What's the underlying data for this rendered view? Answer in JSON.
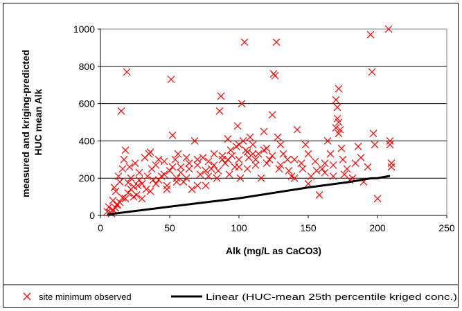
{
  "chart_data": {
    "type": "scatter",
    "xlabel": "Alk (mg/L as CaCO3)",
    "ylabel_line1": "measured and kriging-predicted",
    "ylabel_line2": "HUC mean Alk",
    "xlim": [
      0,
      250
    ],
    "ylim": [
      0,
      1000
    ],
    "xticks": [
      "0",
      "50",
      "100",
      "150",
      "200",
      "250"
    ],
    "yticks": [
      "0",
      "200",
      "400",
      "600",
      "800",
      "1000"
    ],
    "grid": "horizontal",
    "legend": "bottom",
    "colors": {
      "scatter": "#ff0000",
      "line": "#000000"
    },
    "series": [
      {
        "name": "site minimum observed",
        "marker": "x",
        "points": [
          [
            5,
            20
          ],
          [
            6,
            45
          ],
          [
            8,
            10
          ],
          [
            9,
            80
          ],
          [
            10,
            150
          ],
          [
            11,
            130
          ],
          [
            12,
            60
          ],
          [
            13,
            210
          ],
          [
            14,
            180
          ],
          [
            15,
            560
          ],
          [
            16,
            250
          ],
          [
            17,
            300
          ],
          [
            18,
            350
          ],
          [
            19,
            770
          ],
          [
            20,
            120
          ],
          [
            21,
            260
          ],
          [
            22,
            200
          ],
          [
            24,
            100
          ],
          [
            25,
            280
          ],
          [
            27,
            160
          ],
          [
            28,
            230
          ],
          [
            30,
            90
          ],
          [
            32,
            310
          ],
          [
            33,
            140
          ],
          [
            35,
            330
          ],
          [
            36,
            340
          ],
          [
            37,
            250
          ],
          [
            38,
            190
          ],
          [
            40,
            270
          ],
          [
            42,
            300
          ],
          [
            44,
            210
          ],
          [
            46,
            290
          ],
          [
            48,
            160
          ],
          [
            50,
            240
          ],
          [
            51,
            730
          ],
          [
            52,
            430
          ],
          [
            54,
            300
          ],
          [
            55,
            200
          ],
          [
            56,
            330
          ],
          [
            58,
            260
          ],
          [
            60,
            180
          ],
          [
            62,
            310
          ],
          [
            64,
            250
          ],
          [
            66,
            140
          ],
          [
            68,
            400
          ],
          [
            70,
            270
          ],
          [
            72,
            220
          ],
          [
            74,
            310
          ],
          [
            76,
            160
          ],
          [
            78,
            290
          ],
          [
            80,
            250
          ],
          [
            82,
            330
          ],
          [
            84,
            200
          ],
          [
            86,
            560
          ],
          [
            87,
            640
          ],
          [
            88,
            300
          ],
          [
            90,
            280
          ],
          [
            92,
            410
          ],
          [
            93,
            220
          ],
          [
            95,
            320
          ],
          [
            97,
            260
          ],
          [
            98,
            370
          ],
          [
            99,
            480
          ],
          [
            100,
            300
          ],
          [
            101,
            200
          ],
          [
            102,
            600
          ],
          [
            103,
            400
          ],
          [
            104,
            930
          ],
          [
            105,
            350
          ],
          [
            106,
            250
          ],
          [
            107,
            310
          ],
          [
            108,
            420
          ],
          [
            110,
            380
          ],
          [
            112,
            270
          ],
          [
            114,
            330
          ],
          [
            116,
            200
          ],
          [
            118,
            450
          ],
          [
            120,
            360
          ],
          [
            122,
            300
          ],
          [
            124,
            540
          ],
          [
            125,
            760
          ],
          [
            126,
            750
          ],
          [
            127,
            930
          ],
          [
            128,
            420
          ],
          [
            129,
            250
          ],
          [
            130,
            380
          ],
          [
            132,
            330
          ],
          [
            135,
            300
          ],
          [
            138,
            210
          ],
          [
            140,
            200
          ],
          [
            142,
            460
          ],
          [
            145,
            280
          ],
          [
            148,
            380
          ],
          [
            150,
            170
          ],
          [
            152,
            210
          ],
          [
            155,
            290
          ],
          [
            158,
            110
          ],
          [
            160,
            250
          ],
          [
            162,
            230
          ],
          [
            164,
            400
          ],
          [
            166,
            330
          ],
          [
            168,
            270
          ],
          [
            170,
            620
          ],
          [
            171,
            580
          ],
          [
            172,
            680
          ],
          [
            172,
            500
          ],
          [
            173,
            460
          ],
          [
            174,
            360
          ],
          [
            176,
            220
          ],
          [
            178,
            250
          ],
          [
            180,
            190
          ],
          [
            184,
            280
          ],
          [
            186,
            370
          ],
          [
            190,
            180
          ],
          [
            195,
            970
          ],
          [
            196,
            770
          ],
          [
            197,
            440
          ],
          [
            198,
            380
          ],
          [
            200,
            90
          ],
          [
            208,
            1000
          ],
          [
            209,
            400
          ],
          [
            209,
            380
          ],
          [
            210,
            260
          ],
          [
            210,
            280
          ],
          [
            170,
            470
          ],
          [
            171,
            520
          ],
          [
            172,
            440
          ],
          [
            120,
            280
          ],
          [
            110,
            330
          ],
          [
            100,
            260
          ],
          [
            92,
            300
          ],
          [
            85,
            240
          ],
          [
            78,
            210
          ],
          [
            70,
            160
          ],
          [
            62,
            200
          ],
          [
            55,
            180
          ],
          [
            48,
            140
          ],
          [
            42,
            190
          ],
          [
            36,
            130
          ],
          [
            30,
            170
          ],
          [
            26,
            110
          ],
          [
            22,
            140
          ],
          [
            18,
            90
          ],
          [
            14,
            70
          ],
          [
            11,
            40
          ],
          [
            7,
            15
          ],
          [
            9,
            30
          ],
          [
            12,
            55
          ],
          [
            16,
            95
          ],
          [
            20,
            175
          ],
          [
            24,
            155
          ],
          [
            28,
            190
          ],
          [
            34,
            210
          ],
          [
            40,
            170
          ],
          [
            46,
            220
          ],
          [
            52,
            260
          ],
          [
            58,
            230
          ],
          [
            64,
            280
          ],
          [
            70,
            300
          ],
          [
            76,
            240
          ],
          [
            82,
            270
          ],
          [
            88,
            320
          ],
          [
            94,
            350
          ],
          [
            100,
            380
          ],
          [
            106,
            340
          ],
          [
            112,
            300
          ],
          [
            118,
            350
          ],
          [
            124,
            320
          ],
          [
            130,
            270
          ],
          [
            136,
            240
          ],
          [
            140,
            300
          ],
          [
            146,
            250
          ],
          [
            150,
            330
          ],
          [
            156,
            240
          ],
          [
            162,
            280
          ],
          [
            168,
            210
          ],
          [
            175,
            300
          ],
          [
            182,
            200
          ],
          [
            188,
            310
          ],
          [
            193,
            260
          ]
        ]
      },
      {
        "name": "Linear (HUC-mean 25th percentile kriged conc.)",
        "line": [
          [
            5,
            5
          ],
          [
            50,
            47
          ],
          [
            100,
            92
          ],
          [
            150,
            150
          ],
          [
            180,
            180
          ],
          [
            195,
            199
          ],
          [
            200,
            200
          ],
          [
            209,
            212
          ]
        ]
      }
    ]
  }
}
